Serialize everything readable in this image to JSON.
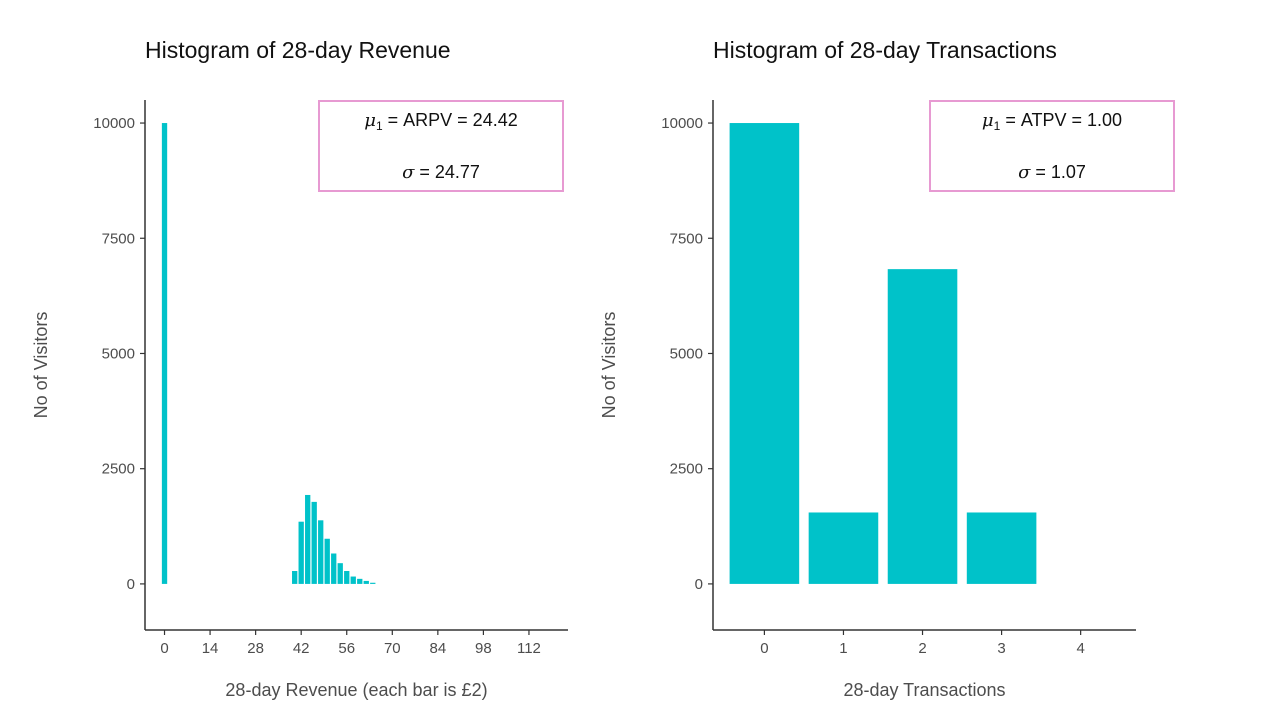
{
  "colors": {
    "bar": "#00c2c9",
    "axis": "#333333",
    "box_border": "#e79ad2"
  },
  "chart_data": [
    {
      "type": "bar",
      "title": "Histogram of 28-day Revenue",
      "xlabel": "28-day Revenue (each bar is £2)",
      "ylabel": "No of Visitors",
      "xlim": [
        -6,
        124
      ],
      "ylim": [
        -1000,
        10500
      ],
      "x_ticks": [
        0,
        14,
        28,
        42,
        56,
        70,
        84,
        98,
        112
      ],
      "y_ticks": [
        0,
        2500,
        5000,
        7500,
        10000
      ],
      "bin_width": 2,
      "x": [
        0,
        40,
        42,
        44,
        46,
        48,
        50,
        52,
        54,
        56,
        58,
        60,
        62,
        64
      ],
      "values": [
        10000,
        280,
        1350,
        1930,
        1780,
        1380,
        980,
        660,
        450,
        280,
        160,
        110,
        65,
        25
      ],
      "stats": {
        "mu_symbol": "μ",
        "mu_subscript": "1",
        "mu_text": " = ARPV = 24.42",
        "sigma_symbol": "σ",
        "sigma_text": " = 24.77"
      }
    },
    {
      "type": "bar",
      "title": "Histogram of 28-day Transactions",
      "xlabel": "28-day Transactions",
      "ylabel": "No of Visitors",
      "xlim": [
        -0.65,
        4.7
      ],
      "ylim": [
        -1000,
        10500
      ],
      "x_ticks": [
        0,
        1,
        2,
        3,
        4
      ],
      "y_ticks": [
        0,
        2500,
        5000,
        7500,
        10000
      ],
      "bin_width": 0.88,
      "x": [
        0,
        1,
        2,
        3
      ],
      "values": [
        10000,
        1550,
        6830,
        1550
      ],
      "stats": {
        "mu_symbol": "μ",
        "mu_subscript": "1",
        "mu_text": " = ATPV = 1.00",
        "sigma_symbol": "σ",
        "sigma_text": " = 1.07"
      }
    }
  ]
}
